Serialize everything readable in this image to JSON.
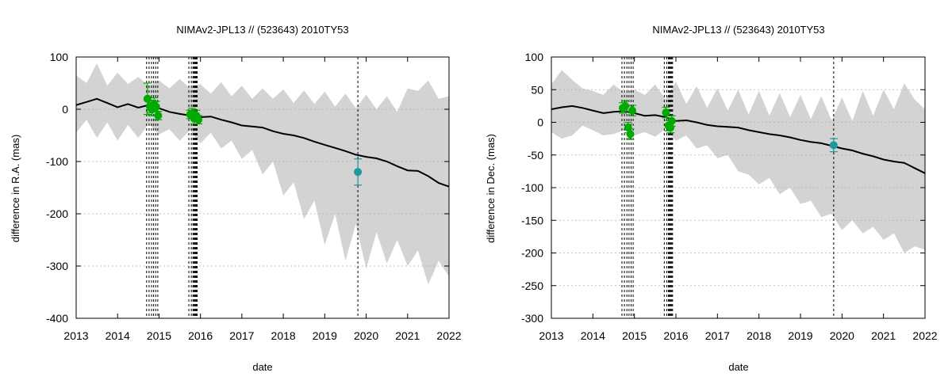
{
  "chart_data": [
    {
      "type": "line",
      "title": "NIMAv2-JPL13 // (523643) 2010TY53",
      "xlabel": "date",
      "ylabel": "difference in R.A. (mas)",
      "xlim": [
        2013,
        2022
      ],
      "ylim": [
        -400,
        100
      ],
      "xticks": [
        2013,
        2014,
        2015,
        2016,
        2017,
        2018,
        2019,
        2020,
        2021,
        2022
      ],
      "yticks": [
        -400,
        -300,
        -200,
        -100,
        0,
        100
      ],
      "colors": {
        "band": "#d3d3d3",
        "line": "#000000",
        "points": "#00aa00",
        "highlight": "#1a9a9a",
        "grid": "#b0b0b0"
      },
      "nominal": {
        "x": [
          2013.0,
          2013.25,
          2013.5,
          2013.75,
          2014.0,
          2014.25,
          2014.5,
          2014.75,
          2015.0,
          2015.25,
          2015.5,
          2015.75,
          2016.0,
          2016.25,
          2016.5,
          2016.75,
          2017.0,
          2017.25,
          2017.5,
          2017.75,
          2018.0,
          2018.25,
          2018.5,
          2018.75,
          2019.0,
          2019.25,
          2019.5,
          2019.75,
          2020.0,
          2020.25,
          2020.5,
          2020.75,
          2021.0,
          2021.25,
          2021.5,
          2021.75,
          2022.0
        ],
        "y": [
          8,
          14,
          20,
          12,
          4,
          10,
          3,
          8,
          2,
          -5,
          -9,
          -12,
          -15,
          -14,
          -20,
          -25,
          -31,
          -33,
          -35,
          -42,
          -47,
          -50,
          -55,
          -62,
          -68,
          -74,
          -80,
          -87,
          -91,
          -94,
          -100,
          -109,
          -117,
          -118,
          -128,
          -141,
          -148
        ]
      },
      "band": {
        "x": [
          2013.0,
          2013.25,
          2013.5,
          2013.75,
          2014.0,
          2014.25,
          2014.5,
          2014.75,
          2015.0,
          2015.25,
          2015.5,
          2015.75,
          2016.0,
          2016.25,
          2016.5,
          2016.75,
          2017.0,
          2017.25,
          2017.5,
          2017.75,
          2018.0,
          2018.25,
          2018.5,
          2018.75,
          2019.0,
          2019.25,
          2019.5,
          2019.75,
          2020.0,
          2020.25,
          2020.5,
          2020.75,
          2021.0,
          2021.25,
          2021.5,
          2021.75,
          2022.0
        ],
        "upper": [
          65,
          50,
          88,
          45,
          70,
          48,
          62,
          45,
          55,
          40,
          58,
          40,
          48,
          30,
          52,
          25,
          45,
          20,
          40,
          20,
          38,
          12,
          36,
          10,
          34,
          5,
          30,
          2,
          28,
          0,
          25,
          -5,
          40,
          35,
          55,
          20,
          25
        ],
        "lower": [
          -45,
          -20,
          -55,
          -25,
          -60,
          -30,
          -55,
          -28,
          -48,
          -38,
          -60,
          -40,
          -65,
          -45,
          -75,
          -60,
          -95,
          -78,
          -125,
          -100,
          -165,
          -140,
          -210,
          -175,
          -260,
          -200,
          -290,
          -220,
          -305,
          -235,
          -295,
          -250,
          -300,
          -270,
          -335,
          -290,
          -320
        ]
      },
      "observations": [
        {
          "x": 2014.72,
          "y": 20,
          "err": 30
        },
        {
          "x": 2014.78,
          "y": 5,
          "err": 12
        },
        {
          "x": 2014.83,
          "y": 0,
          "err": 12
        },
        {
          "x": 2014.88,
          "y": 10,
          "err": 12
        },
        {
          "x": 2014.93,
          "y": 5,
          "err": 10
        },
        {
          "x": 2014.98,
          "y": -12,
          "err": 8
        },
        {
          "x": 2015.75,
          "y": -10,
          "err": 8
        },
        {
          "x": 2015.8,
          "y": -8,
          "err": 10
        },
        {
          "x": 2015.85,
          "y": -18,
          "err": 10
        },
        {
          "x": 2015.9,
          "y": -12,
          "err": 10
        },
        {
          "x": 2015.95,
          "y": -20,
          "err": 8
        }
      ],
      "highlighted": [
        {
          "x": 2019.8,
          "y": -120,
          "err": 25
        }
      ],
      "obs_dates": [
        2014.7,
        2014.76,
        2014.82,
        2014.87,
        2014.92,
        2014.97,
        2015.72,
        2015.78,
        2015.82,
        2015.84,
        2015.86,
        2015.88,
        2015.9,
        2015.92,
        2019.8
      ]
    },
    {
      "type": "line",
      "title": "NIMAv2-JPL13 // (523643) 2010TY53",
      "xlabel": "date",
      "ylabel": "difference in Dec. (mas)",
      "xlim": [
        2013,
        2022
      ],
      "ylim": [
        -300,
        100
      ],
      "xticks": [
        2013,
        2014,
        2015,
        2016,
        2017,
        2018,
        2019,
        2020,
        2021,
        2022
      ],
      "yticks": [
        -300,
        -250,
        -200,
        -150,
        -100,
        -50,
        0,
        50,
        100
      ],
      "colors": {
        "band": "#d3d3d3",
        "line": "#000000",
        "points": "#00aa00",
        "highlight": "#1a9a9a",
        "grid": "#b0b0b0"
      },
      "nominal": {
        "x": [
          2013.0,
          2013.25,
          2013.5,
          2013.75,
          2014.0,
          2014.25,
          2014.5,
          2014.75,
          2015.0,
          2015.25,
          2015.5,
          2015.75,
          2016.0,
          2016.25,
          2016.5,
          2016.75,
          2017.0,
          2017.25,
          2017.5,
          2017.75,
          2018.0,
          2018.25,
          2018.5,
          2018.75,
          2019.0,
          2019.25,
          2019.5,
          2019.75,
          2020.0,
          2020.25,
          2020.5,
          2020.75,
          2021.0,
          2021.25,
          2021.5,
          2021.75,
          2022.0
        ],
        "y": [
          20,
          23,
          25,
          22,
          18,
          14,
          16,
          17,
          14,
          10,
          11,
          8,
          2,
          3,
          0,
          -4,
          -6,
          -7,
          -8,
          -12,
          -15,
          -18,
          -20,
          -23,
          -27,
          -30,
          -32,
          -36,
          -40,
          -43,
          -48,
          -52,
          -57,
          -60,
          -62,
          -70,
          -78
        ]
      },
      "band": {
        "x": [
          2013.0,
          2013.25,
          2013.5,
          2013.75,
          2014.0,
          2014.25,
          2014.5,
          2014.75,
          2015.0,
          2015.25,
          2015.5,
          2015.75,
          2016.0,
          2016.25,
          2016.5,
          2016.75,
          2017.0,
          2017.25,
          2017.5,
          2017.75,
          2018.0,
          2018.25,
          2018.5,
          2018.75,
          2019.0,
          2019.25,
          2019.5,
          2019.75,
          2020.0,
          2020.25,
          2020.5,
          2020.75,
          2021.0,
          2021.25,
          2021.5,
          2021.75,
          2022.0
        ],
        "upper": [
          58,
          80,
          65,
          52,
          48,
          42,
          58,
          45,
          50,
          42,
          58,
          35,
          62,
          28,
          55,
          22,
          52,
          18,
          50,
          12,
          48,
          10,
          45,
          8,
          42,
          5,
          40,
          3,
          38,
          2,
          48,
          10,
          50,
          20,
          60,
          35,
          20
        ],
        "lower": [
          -15,
          -25,
          -20,
          -5,
          -12,
          -20,
          -18,
          -12,
          -20,
          -15,
          -22,
          -10,
          -28,
          -20,
          -40,
          -35,
          -55,
          -50,
          -75,
          -80,
          -95,
          -85,
          -110,
          -100,
          -125,
          -120,
          -145,
          -140,
          -165,
          -150,
          -170,
          -160,
          -180,
          -170,
          -200,
          -190,
          -195
        ]
      },
      "observations": [
        {
          "x": 2014.72,
          "y": 22,
          "err": 8
        },
        {
          "x": 2014.78,
          "y": 25,
          "err": 8
        },
        {
          "x": 2014.85,
          "y": -8,
          "err": 8
        },
        {
          "x": 2014.9,
          "y": -18,
          "err": 8
        },
        {
          "x": 2014.95,
          "y": 18,
          "err": 8
        },
        {
          "x": 2015.76,
          "y": 15,
          "err": 8
        },
        {
          "x": 2015.82,
          "y": -5,
          "err": 8
        },
        {
          "x": 2015.87,
          "y": -8,
          "err": 8
        },
        {
          "x": 2015.9,
          "y": 2,
          "err": 8
        }
      ],
      "highlighted": [
        {
          "x": 2019.8,
          "y": -35,
          "err": 10
        }
      ],
      "obs_dates": [
        2014.7,
        2014.76,
        2014.82,
        2014.87,
        2014.92,
        2014.97,
        2015.72,
        2015.78,
        2015.82,
        2015.84,
        2015.86,
        2015.88,
        2015.9,
        2015.92,
        2019.8
      ]
    }
  ]
}
